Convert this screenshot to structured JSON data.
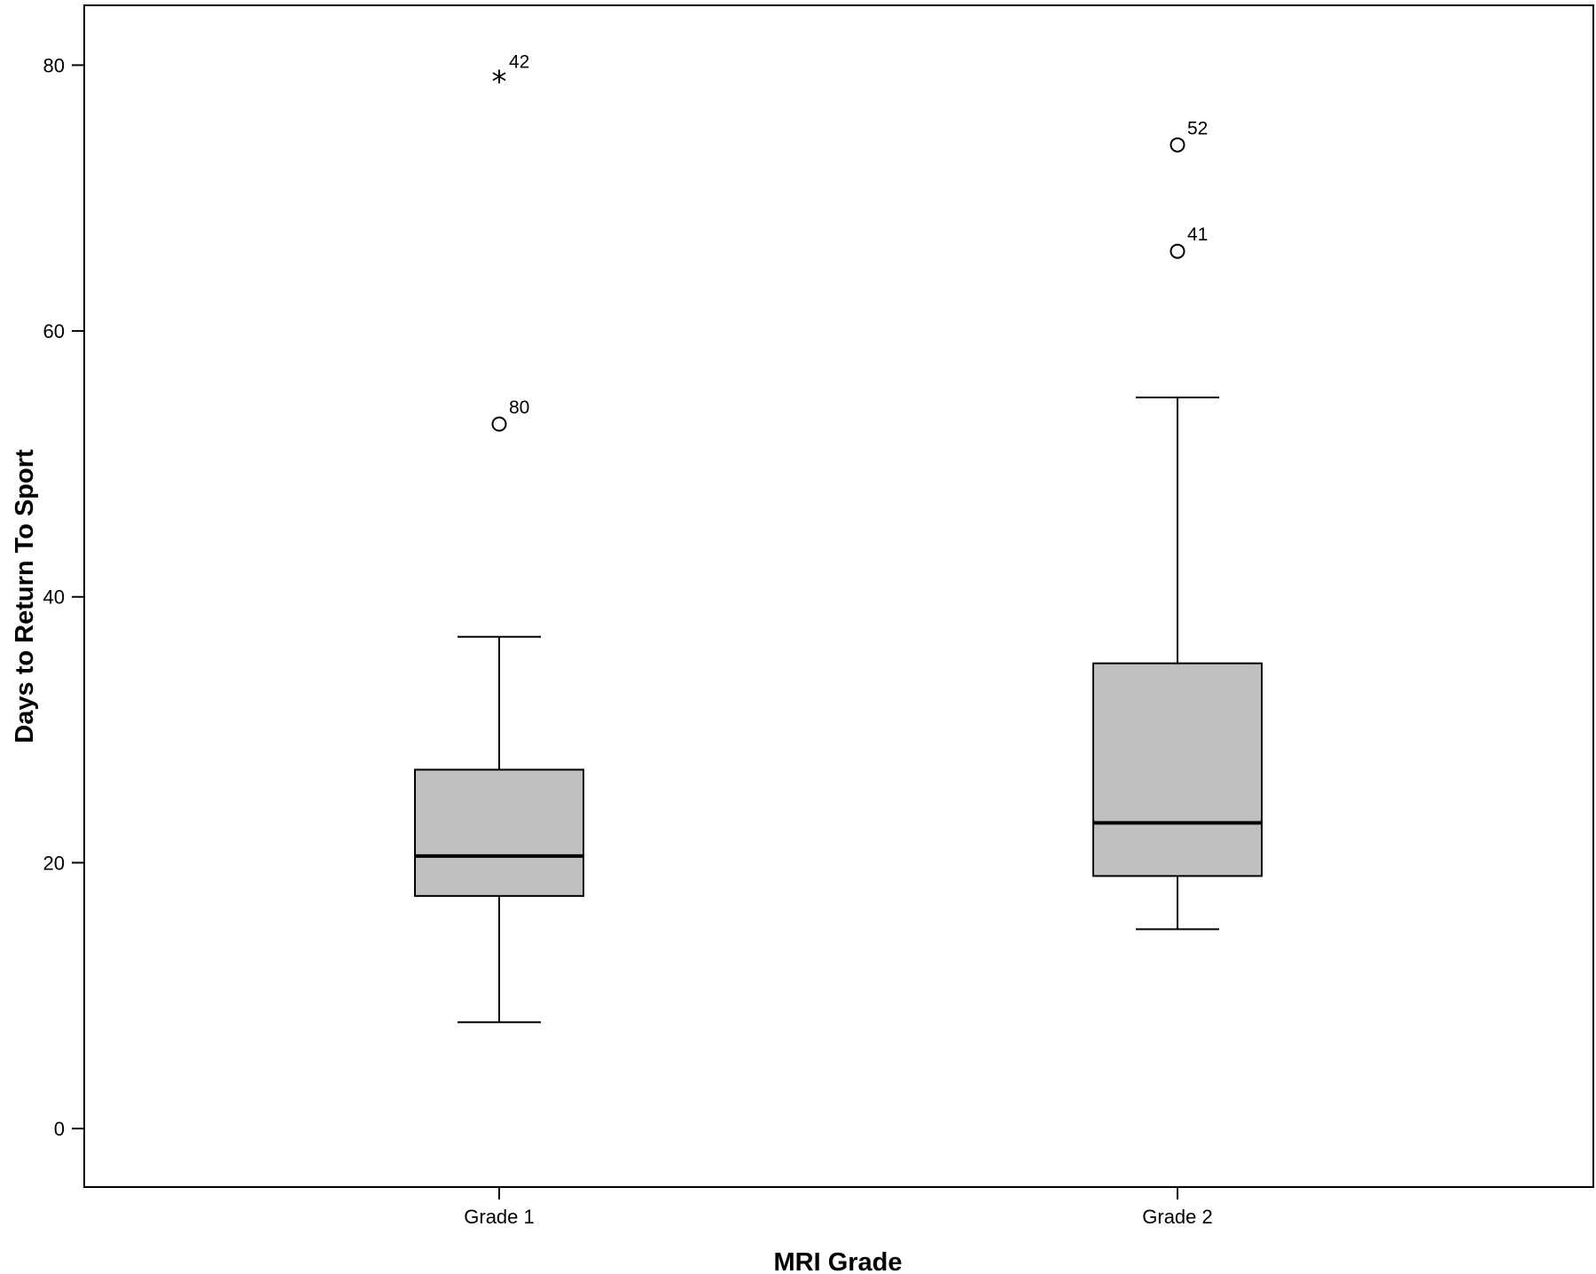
{
  "chart_data": {
    "type": "boxplot",
    "xlabel": "MRI Grade",
    "ylabel": "Days to Return To Sport",
    "ylim": [
      -4.4,
      84.5
    ],
    "yticks": [
      0,
      20,
      40,
      60,
      80
    ],
    "categories": [
      "Grade 1",
      "Grade 2"
    ],
    "box_fill": "#c0c0c0",
    "grid": false,
    "boxes": [
      {
        "category": "Grade 1",
        "whisker_low": 8,
        "q1": 17.5,
        "median": 20.5,
        "q3": 27,
        "whisker_high": 37,
        "outliers": [
          {
            "value": 53,
            "label": "80",
            "marker": "circle"
          },
          {
            "value": 79,
            "label": "42",
            "marker": "star"
          }
        ]
      },
      {
        "category": "Grade 2",
        "whisker_low": 15,
        "q1": 19,
        "median": 23,
        "q3": 35,
        "whisker_high": 55,
        "outliers": [
          {
            "value": 66,
            "label": "41",
            "marker": "circle"
          },
          {
            "value": 74,
            "label": "52",
            "marker": "circle"
          }
        ]
      }
    ]
  }
}
